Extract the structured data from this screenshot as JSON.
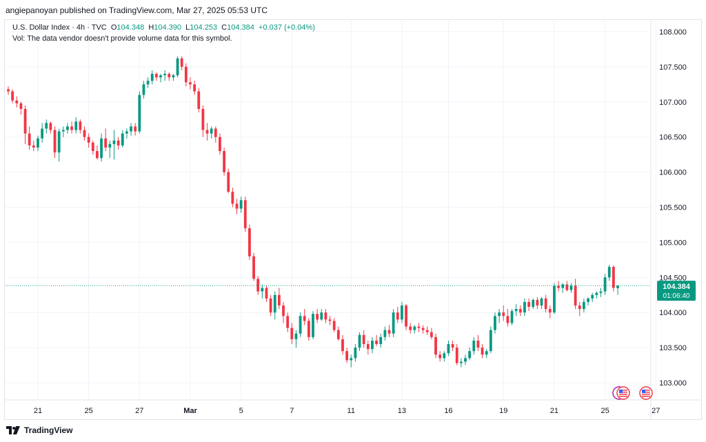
{
  "header": {
    "publisher": "angiepanoyan published on TradingView.com, Mar 27, 2025 05:53 UTC"
  },
  "legend": {
    "symbol": "U.S. Dollar Index · 4h · TVC",
    "o_label": "O",
    "o_value": "104.348",
    "h_label": "H",
    "h_value": "104.390",
    "l_label": "L",
    "l_value": "104.253",
    "c_label": "C",
    "c_value": "104.384",
    "change": "+0.037 (+0.04%)",
    "vol_note": "Vol: The data vendor doesn't provide volume data for this symbol."
  },
  "price_tag": {
    "price": "104.384",
    "countdown": "01:06:40"
  },
  "footer": {
    "brand": "TradingView"
  },
  "colors": {
    "up": "#089981",
    "down": "#f23645",
    "grid": "#f0f3fa",
    "axis_text": "#131722",
    "price_line": "#089981"
  },
  "chart_data": {
    "type": "candlestick",
    "title": "U.S. Dollar Index · 4h · TVC",
    "interval": "4h",
    "ylim": [
      102.8,
      108.2
    ],
    "yticks": [
      "103.000",
      "103.500",
      "104.000",
      "104.500",
      "105.000",
      "105.500",
      "106.000",
      "106.500",
      "107.000",
      "107.500",
      "108.000"
    ],
    "xticks": [
      {
        "label": "21",
        "index": 7
      },
      {
        "label": "25",
        "index": 19
      },
      {
        "label": "27",
        "index": 31
      },
      {
        "label": "Mar",
        "index": 43
      },
      {
        "label": "5",
        "index": 55
      },
      {
        "label": "7",
        "index": 67
      },
      {
        "label": "11",
        "index": 81
      },
      {
        "label": "13",
        "index": 93
      },
      {
        "label": "16",
        "index": 104
      },
      {
        "label": "19",
        "index": 117
      },
      {
        "label": "21",
        "index": 129
      },
      {
        "label": "25",
        "index": 141
      },
      {
        "label": "27",
        "index": 153
      }
    ],
    "last_price": 104.384,
    "candles": [
      [
        107.18,
        107.22,
        107.1,
        107.15
      ],
      [
        107.15,
        107.18,
        106.98,
        107.02
      ],
      [
        107.02,
        107.08,
        106.92,
        106.98
      ],
      [
        106.98,
        107.0,
        106.82,
        106.9
      ],
      [
        106.9,
        106.95,
        106.4,
        106.55
      ],
      [
        106.55,
        106.65,
        106.32,
        106.38
      ],
      [
        106.38,
        106.45,
        106.3,
        106.35
      ],
      [
        106.35,
        106.52,
        106.3,
        106.48
      ],
      [
        106.48,
        106.7,
        106.42,
        106.62
      ],
      [
        106.62,
        106.75,
        106.55,
        106.7
      ],
      [
        106.7,
        106.72,
        106.55,
        106.6
      ],
      [
        106.6,
        106.65,
        106.2,
        106.28
      ],
      [
        106.28,
        106.62,
        106.15,
        106.58
      ],
      [
        106.58,
        106.65,
        106.5,
        106.6
      ],
      [
        106.6,
        106.7,
        106.55,
        106.65
      ],
      [
        106.65,
        106.72,
        106.55,
        106.6
      ],
      [
        106.6,
        106.78,
        106.55,
        106.72
      ],
      [
        106.72,
        106.75,
        106.55,
        106.6
      ],
      [
        106.6,
        106.65,
        106.45,
        106.5
      ],
      [
        106.5,
        106.55,
        106.35,
        106.42
      ],
      [
        106.42,
        106.45,
        106.25,
        106.3
      ],
      [
        106.3,
        106.38,
        106.18,
        106.2
      ],
      [
        106.2,
        106.55,
        106.15,
        106.48
      ],
      [
        106.48,
        106.62,
        106.3,
        106.35
      ],
      [
        106.35,
        106.45,
        106.2,
        106.4
      ],
      [
        106.4,
        106.6,
        106.18,
        106.45
      ],
      [
        106.45,
        106.5,
        106.32,
        106.38
      ],
      [
        106.38,
        106.6,
        106.35,
        106.55
      ],
      [
        106.55,
        106.62,
        106.48,
        106.58
      ],
      [
        106.58,
        106.7,
        106.52,
        106.65
      ],
      [
        106.65,
        106.7,
        106.52,
        106.58
      ],
      [
        106.58,
        107.15,
        106.55,
        107.1
      ],
      [
        107.1,
        107.3,
        107.05,
        107.25
      ],
      [
        107.25,
        107.35,
        107.2,
        107.3
      ],
      [
        107.3,
        107.45,
        107.25,
        107.4
      ],
      [
        107.4,
        107.42,
        107.3,
        107.35
      ],
      [
        107.35,
        107.4,
        107.28,
        107.38
      ],
      [
        107.38,
        107.45,
        107.3,
        107.4
      ],
      [
        107.4,
        107.42,
        107.3,
        107.35
      ],
      [
        107.35,
        107.4,
        107.3,
        107.38
      ],
      [
        107.38,
        107.65,
        107.35,
        107.62
      ],
      [
        107.62,
        107.65,
        107.45,
        107.5
      ],
      [
        107.5,
        107.55,
        107.22,
        107.28
      ],
      [
        107.28,
        107.35,
        107.18,
        107.25
      ],
      [
        107.25,
        107.3,
        107.1,
        107.15
      ],
      [
        107.15,
        107.2,
        106.85,
        106.9
      ],
      [
        106.9,
        106.95,
        106.5,
        106.6
      ],
      [
        106.6,
        106.7,
        106.45,
        106.55
      ],
      [
        106.55,
        106.65,
        106.48,
        106.62
      ],
      [
        106.62,
        106.65,
        106.42,
        106.5
      ],
      [
        106.5,
        106.55,
        106.25,
        106.3
      ],
      [
        106.3,
        106.35,
        105.95,
        106.0
      ],
      [
        106.0,
        106.05,
        105.7,
        105.72
      ],
      [
        105.72,
        105.78,
        105.5,
        105.55
      ],
      [
        105.55,
        105.62,
        105.4,
        105.48
      ],
      [
        105.48,
        105.65,
        105.42,
        105.6
      ],
      [
        105.6,
        105.65,
        105.15,
        105.2
      ],
      [
        105.2,
        105.25,
        104.75,
        104.8
      ],
      [
        104.8,
        104.85,
        104.45,
        104.48
      ],
      [
        104.48,
        104.52,
        104.25,
        104.3
      ],
      [
        104.3,
        104.4,
        104.2,
        104.35
      ],
      [
        104.35,
        104.38,
        104.15,
        104.2
      ],
      [
        104.2,
        104.25,
        103.95,
        104.0
      ],
      [
        104.0,
        104.3,
        103.9,
        104.25
      ],
      [
        104.25,
        104.35,
        104.05,
        104.1
      ],
      [
        104.1,
        104.15,
        103.85,
        103.95
      ],
      [
        103.95,
        104.0,
        103.72,
        103.78
      ],
      [
        103.78,
        103.85,
        103.55,
        103.62
      ],
      [
        103.62,
        103.75,
        103.5,
        103.7
      ],
      [
        103.7,
        104.0,
        103.65,
        103.95
      ],
      [
        103.95,
        104.05,
        103.82,
        103.88
      ],
      [
        103.88,
        103.92,
        103.6,
        103.65
      ],
      [
        103.65,
        104.02,
        103.62,
        103.98
      ],
      [
        103.98,
        104.05,
        103.85,
        103.9
      ],
      [
        103.9,
        104.05,
        103.88,
        104.0
      ],
      [
        104.0,
        104.05,
        103.85,
        103.9
      ],
      [
        103.9,
        103.95,
        103.82,
        103.88
      ],
      [
        103.88,
        103.92,
        103.72,
        103.75
      ],
      [
        103.75,
        103.8,
        103.6,
        103.62
      ],
      [
        103.62,
        103.68,
        103.4,
        103.45
      ],
      [
        103.45,
        103.5,
        103.28,
        103.32
      ],
      [
        103.32,
        103.4,
        103.22,
        103.35
      ],
      [
        103.35,
        103.55,
        103.3,
        103.5
      ],
      [
        103.5,
        103.72,
        103.45,
        103.68
      ],
      [
        103.68,
        103.75,
        103.5,
        103.55
      ],
      [
        103.55,
        103.6,
        103.4,
        103.48
      ],
      [
        103.48,
        103.65,
        103.42,
        103.6
      ],
      [
        103.6,
        103.68,
        103.52,
        103.55
      ],
      [
        103.55,
        103.7,
        103.5,
        103.65
      ],
      [
        103.65,
        103.8,
        103.6,
        103.75
      ],
      [
        103.75,
        103.82,
        103.65,
        103.7
      ],
      [
        103.7,
        104.05,
        103.65,
        104.0
      ],
      [
        104.0,
        104.08,
        103.85,
        103.9
      ],
      [
        103.9,
        104.15,
        103.85,
        104.1
      ],
      [
        104.1,
        104.12,
        103.75,
        103.8
      ],
      [
        103.8,
        103.85,
        103.7,
        103.75
      ],
      [
        103.75,
        103.82,
        103.7,
        103.8
      ],
      [
        103.8,
        103.85,
        103.72,
        103.78
      ],
      [
        103.78,
        103.82,
        103.7,
        103.75
      ],
      [
        103.75,
        103.8,
        103.68,
        103.72
      ],
      [
        103.72,
        103.78,
        103.62,
        103.65
      ],
      [
        103.65,
        103.7,
        103.35,
        103.4
      ],
      [
        103.4,
        103.45,
        103.3,
        103.35
      ],
      [
        103.35,
        103.45,
        103.3,
        103.42
      ],
      [
        103.42,
        103.6,
        103.38,
        103.55
      ],
      [
        103.55,
        103.6,
        103.45,
        103.5
      ],
      [
        103.5,
        103.55,
        103.25,
        103.28
      ],
      [
        103.28,
        103.35,
        103.22,
        103.3
      ],
      [
        103.3,
        103.4,
        103.25,
        103.35
      ],
      [
        103.35,
        103.5,
        103.32,
        103.45
      ],
      [
        103.45,
        103.65,
        103.4,
        103.6
      ],
      [
        103.6,
        103.68,
        103.45,
        103.5
      ],
      [
        103.5,
        103.55,
        103.35,
        103.4
      ],
      [
        103.4,
        103.48,
        103.35,
        103.45
      ],
      [
        103.45,
        103.8,
        103.42,
        103.75
      ],
      [
        103.75,
        104.0,
        103.7,
        103.95
      ],
      [
        103.95,
        104.05,
        103.85,
        104.0
      ],
      [
        104.0,
        104.1,
        103.88,
        103.95
      ],
      [
        103.95,
        104.05,
        103.8,
        103.85
      ],
      [
        103.85,
        104.05,
        103.82,
        104.02
      ],
      [
        104.02,
        104.12,
        103.95,
        104.05
      ],
      [
        104.05,
        104.1,
        103.95,
        104.0
      ],
      [
        104.0,
        104.2,
        103.95,
        104.15
      ],
      [
        104.15,
        104.2,
        104.02,
        104.08
      ],
      [
        104.08,
        104.2,
        104.05,
        104.18
      ],
      [
        104.18,
        104.22,
        104.05,
        104.1
      ],
      [
        104.1,
        104.22,
        104.05,
        104.2
      ],
      [
        104.2,
        104.25,
        104.0,
        104.05
      ],
      [
        104.05,
        104.1,
        103.92,
        104.0
      ],
      [
        104.0,
        104.42,
        103.98,
        104.38
      ],
      [
        104.38,
        104.45,
        104.3,
        104.35
      ],
      [
        104.35,
        104.42,
        104.28,
        104.4
      ],
      [
        104.4,
        104.45,
        104.3,
        104.32
      ],
      [
        104.32,
        104.42,
        104.28,
        104.38
      ],
      [
        104.38,
        104.48,
        104.05,
        104.1
      ],
      [
        104.1,
        104.15,
        103.95,
        104.05
      ],
      [
        104.05,
        104.2,
        104.0,
        104.15
      ],
      [
        104.15,
        104.22,
        104.1,
        104.2
      ],
      [
        104.2,
        104.28,
        104.15,
        104.25
      ],
      [
        104.25,
        104.3,
        104.2,
        104.28
      ],
      [
        104.28,
        104.35,
        104.22,
        104.3
      ],
      [
        104.3,
        104.55,
        104.25,
        104.5
      ],
      [
        104.5,
        104.68,
        104.45,
        104.65
      ],
      [
        104.65,
        104.67,
        104.3,
        104.35
      ],
      [
        104.348,
        104.39,
        104.253,
        104.384
      ]
    ]
  }
}
